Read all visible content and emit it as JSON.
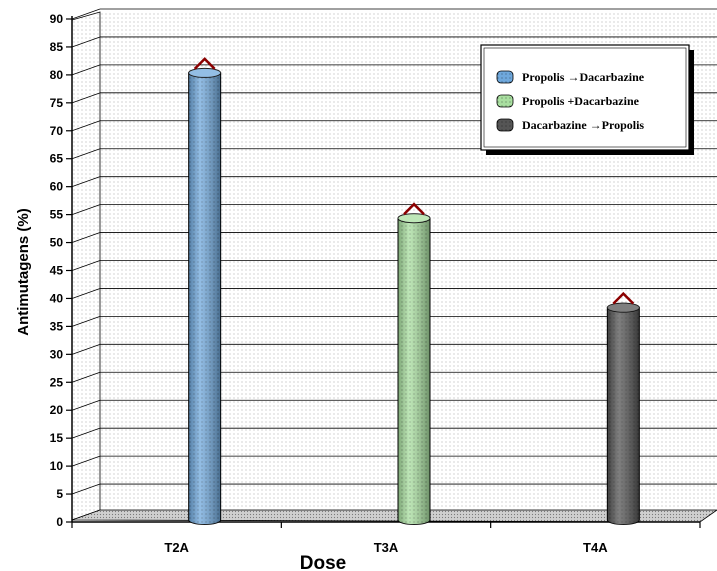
{
  "chart_data": {
    "type": "bar",
    "title": "",
    "xlabel": "Dose",
    "ylabel": "Antimutagens (%)",
    "ylim": [
      0,
      90
    ],
    "ytick_step": 5,
    "grid": true,
    "legend_position": "top-right",
    "categories": [
      "T2A",
      "T3A",
      "T4A"
    ],
    "series": [
      {
        "name": "Propolis →Dacarbazine",
        "values": [
          80,
          null,
          null
        ],
        "color": "#6fa8dc"
      },
      {
        "name": "Propolis +Dacarbazine",
        "values": [
          null,
          54,
          null
        ],
        "color": "#a9dfa0"
      },
      {
        "name": "Dacarbazine →Propolis",
        "values": [
          null,
          null,
          38
        ],
        "color": "#555555"
      }
    ],
    "annotation_color": "#8b0000"
  }
}
